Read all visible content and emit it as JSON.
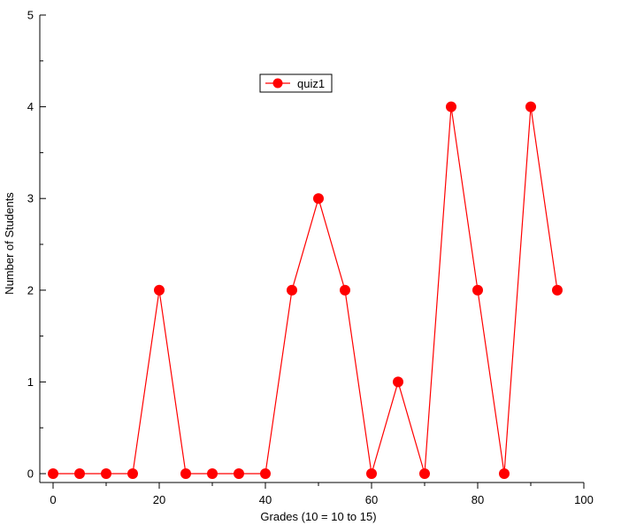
{
  "chart_data": {
    "type": "line",
    "title": "",
    "xlabel": "Grades (10 = 10 to 15)",
    "ylabel": "Number of Students",
    "xlim": [
      0,
      100
    ],
    "ylim": [
      0,
      5
    ],
    "xticks": [
      0,
      20,
      40,
      60,
      80,
      100
    ],
    "yticks": [
      0,
      1,
      2,
      3,
      4,
      5
    ],
    "grid": false,
    "legend": "top-center",
    "series": [
      {
        "name": "quiz1",
        "color": "#ff0000",
        "marker": "circle",
        "x": [
          0,
          5,
          10,
          15,
          20,
          25,
          30,
          35,
          40,
          45,
          50,
          55,
          60,
          65,
          70,
          75,
          80,
          85,
          90,
          95
        ],
        "y": [
          0,
          0,
          0,
          0,
          2,
          0,
          0,
          0,
          0,
          2,
          3,
          2,
          0,
          1,
          0,
          4,
          2,
          0,
          4,
          2
        ]
      }
    ]
  }
}
